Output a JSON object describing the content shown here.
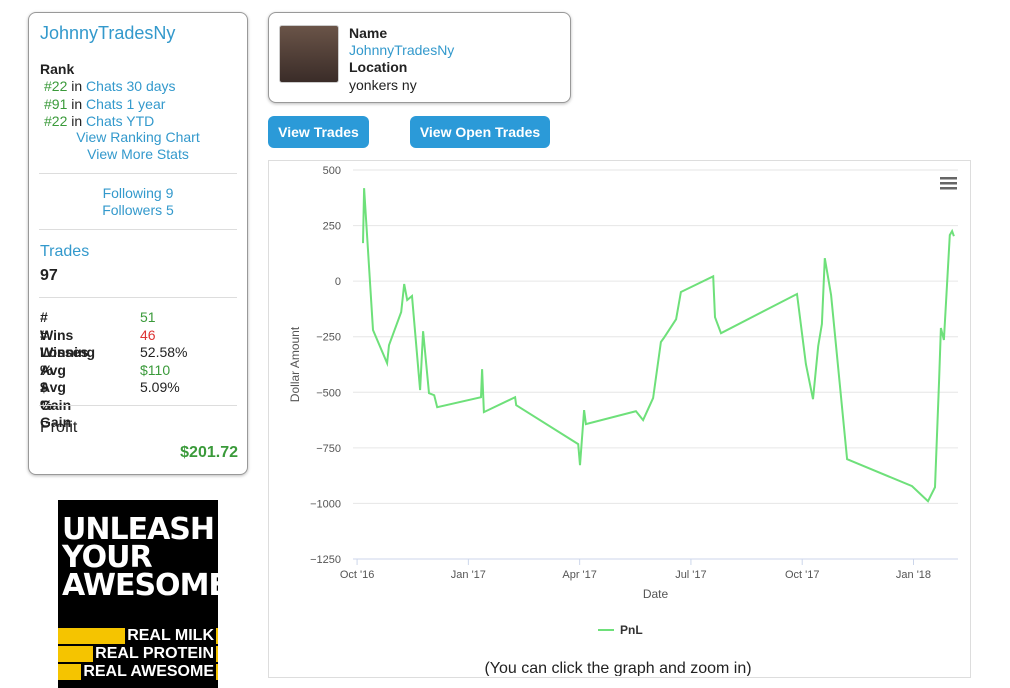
{
  "sidebar": {
    "username": "JohnnyTradesNy",
    "rank_label": "Rank",
    "ranks": [
      {
        "rank": "#22",
        "text": "in",
        "link": "Chats 30 days"
      },
      {
        "rank": "#91",
        "text": "in",
        "link": "Chats 1 year"
      },
      {
        "rank": "#22",
        "text": "in",
        "link": "Chats YTD"
      }
    ],
    "links": [
      "View Ranking Chart",
      "View More Stats"
    ],
    "following": "Following 9",
    "followers": "Followers 5",
    "trades_label": "Trades",
    "trades_count": "97",
    "stats": [
      [
        "# Wins",
        "51"
      ],
      [
        "# Losses",
        "46"
      ],
      [
        "Winning %",
        "52.58%"
      ],
      [
        "Avg $ Gain",
        "$110"
      ],
      [
        "Avg % Gain",
        "5.09%"
      ]
    ],
    "profit_label": "Profit",
    "profit": "$201.72"
  },
  "ad": {
    "headline": "UNLEASH YOUR AWESOME",
    "lines": [
      "REAL MILK",
      "REAL PROTEIN",
      "REAL AWESOME"
    ]
  },
  "profile": {
    "name_label": "Name",
    "name": "JohnnyTradesNy",
    "location_label": "Location",
    "location": "yonkers ny"
  },
  "buttons": [
    "View Trades",
    "View Open Trades"
  ],
  "chart_data": {
    "type": "line",
    "x_label": "Date",
    "y_label": "Dollar Amount",
    "note": "(You can click the graph and zoom in)",
    "x": [
      0.16,
      0.19,
      0.43,
      0.81,
      0.86,
      1.19,
      1.27,
      1.35,
      1.48,
      1.7,
      1.78,
      1.94,
      2.08,
      2.16,
      3.34,
      3.37,
      3.42,
      4.26,
      4.29,
      5.96,
      6.01,
      6.12,
      6.17,
      7.52,
      7.71,
      7.98,
      8.19,
      8.27,
      8.6,
      8.73,
      9.6,
      9.65,
      9.81,
      11.86,
      12.1,
      12.29,
      12.43,
      12.53,
      12.61,
      12.78,
      13.21,
      14.96,
      15.39,
      15.58,
      15.69,
      15.74,
      15.82,
      15.98,
      16.04,
      16.09
    ],
    "series": [
      {
        "name": "PnL",
        "color": "#6ee07a",
        "values": [
          171,
          418,
          -220,
          -369,
          -288,
          -139,
          -13,
          -85,
          -67,
          -490,
          -225,
          -504,
          -513,
          -567,
          -522,
          -396,
          -589,
          -522,
          -558,
          -733,
          -828,
          -580,
          -643,
          -585,
          -625,
          -526,
          -274,
          -256,
          -171,
          -49,
          22,
          -162,
          -234,
          -58,
          -373,
          -531,
          -292,
          -193,
          103,
          -63,
          -801,
          -922,
          -990,
          -927,
          -445,
          -211,
          -265,
          207,
          225,
          202
        ]
      }
    ],
    "xlim": [
      -0.11,
      16.2
    ],
    "xticks": [
      {
        "value": 0,
        "label": "Oct '16"
      },
      {
        "value": 3,
        "label": "Jan '17"
      },
      {
        "value": 6,
        "label": "Apr '17"
      },
      {
        "value": 9,
        "label": "Jul '17"
      },
      {
        "value": 12,
        "label": "Oct '17"
      },
      {
        "value": 15,
        "label": "Jan '18"
      }
    ],
    "ylim": [
      -1250,
      500
    ],
    "yticks": [
      500,
      250,
      0,
      {
        "value": -250,
        "label": "−250"
      },
      {
        "value": -500,
        "label": "−500"
      },
      {
        "value": -750,
        "label": "−750"
      },
      {
        "value": -1000,
        "label": "−1000"
      },
      {
        "value": -1250,
        "label": "−1250"
      }
    ],
    "grid": true,
    "legend": "bottom"
  }
}
